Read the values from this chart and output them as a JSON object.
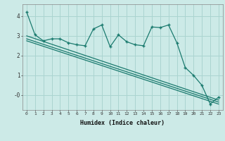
{
  "title": "",
  "xlabel": "Humidex (Indice chaleur)",
  "background_color": "#cceae7",
  "grid_color": "#aad4d0",
  "line_color": "#1a7a6e",
  "x_data": [
    0,
    1,
    2,
    3,
    4,
    5,
    6,
    7,
    8,
    9,
    10,
    11,
    12,
    13,
    14,
    15,
    16,
    17,
    18,
    19,
    20,
    21,
    22,
    23
  ],
  "y_main": [
    4.2,
    3.05,
    2.75,
    2.85,
    2.85,
    2.65,
    2.55,
    2.5,
    3.35,
    3.55,
    2.45,
    3.05,
    2.7,
    2.55,
    2.5,
    3.45,
    3.42,
    3.55,
    2.65,
    1.4,
    1.0,
    0.5,
    -0.45,
    -0.1
  ],
  "reg_lines": [
    {
      "x0": 0,
      "y0": 3.0,
      "x1": 23,
      "y1": -0.25
    },
    {
      "x0": 0,
      "y0": 2.85,
      "x1": 23,
      "y1": -0.35
    },
    {
      "x0": 0,
      "y0": 2.75,
      "x1": 23,
      "y1": -0.45
    }
  ],
  "xlim": [
    -0.5,
    23.5
  ],
  "ylim": [
    -0.75,
    4.6
  ],
  "yticks": [
    0,
    1,
    2,
    3,
    4
  ],
  "ytick_labels": [
    "-0",
    "1",
    "2",
    "3",
    "4"
  ],
  "xticks": [
    0,
    1,
    2,
    3,
    4,
    5,
    6,
    7,
    8,
    9,
    10,
    11,
    12,
    13,
    14,
    15,
    16,
    17,
    18,
    19,
    20,
    21,
    22,
    23
  ]
}
